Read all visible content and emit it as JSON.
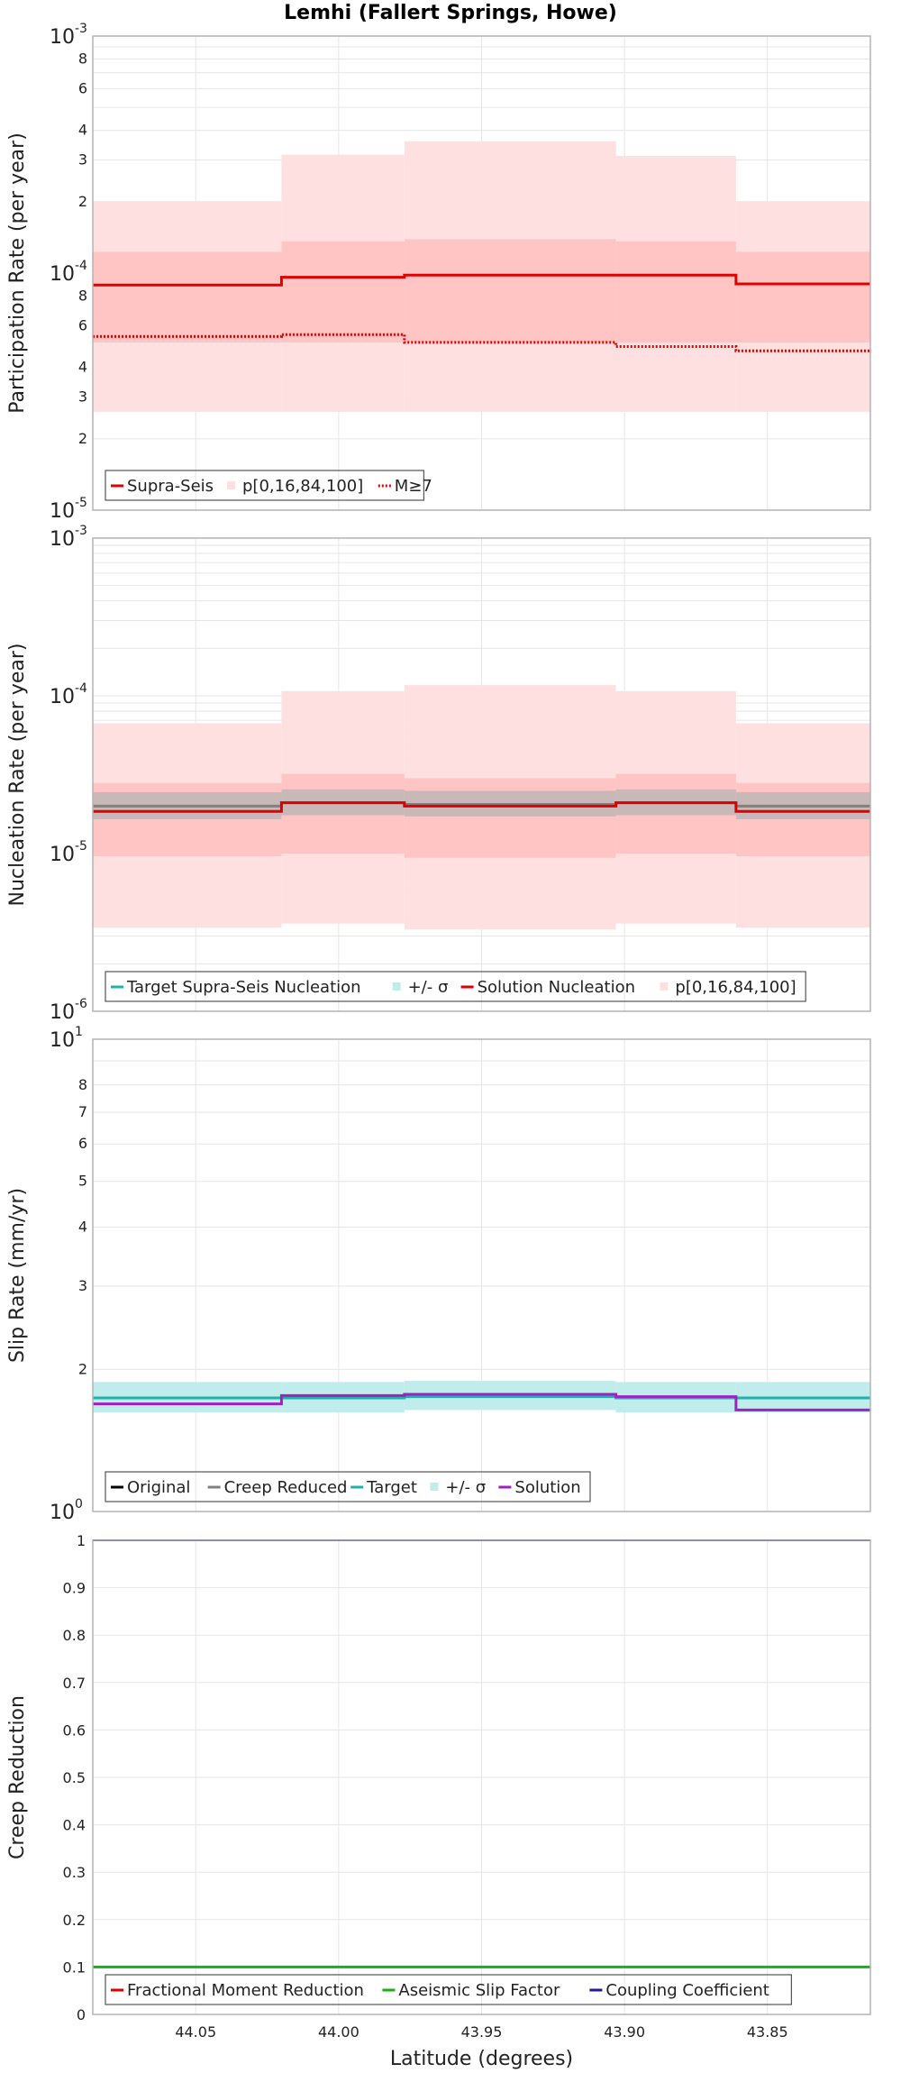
{
  "title": "Lemhi (Fallert Springs, Howe)",
  "colors": {
    "red": "#e00000",
    "pink_light": "#ffe0e0",
    "pink_mid": "#ffc4c4",
    "gray": "#808080",
    "gray_band": "#c9b8b8",
    "teal": "#20b2aa",
    "teal_band": "#c0ecec",
    "purple": "#a020c0",
    "green": "#18b018",
    "navy": "#1c1c9c",
    "black": "#000000",
    "grid": "#e6e6e6",
    "frame": "#b4b4b4"
  },
  "chart_data": [
    {
      "type": "line",
      "ylabel": "Participation Rate (per year)",
      "log": true,
      "ylim": [
        1e-05,
        0.001
      ],
      "bands": [
        {
          "name": "p[0,16,84,100]",
          "level": "outer",
          "values": [
            [
              2.6e-05,
              0.000201
            ],
            [
              2.6e-05,
              0.000316
            ],
            [
              2.6e-05,
              0.00036
            ],
            [
              2.6e-05,
              0.000312
            ],
            [
              2.6e-05,
              0.000201
            ]
          ]
        },
        {
          "name": "p[0,16,84,100]",
          "level": "inner",
          "values": [
            [
              5.1e-05,
              0.000123
            ],
            [
              5.1e-05,
              0.000136
            ],
            [
              5.1e-05,
              0.000139
            ],
            [
              5.1e-05,
              0.000136
            ],
            [
              5.1e-05,
              0.000123
            ]
          ]
        }
      ],
      "series": [
        {
          "name": "Supra-Seis",
          "style": "solid",
          "values": [
            8.9e-05,
            9.6e-05,
            9.8e-05,
            9.8e-05,
            9e-05
          ]
        },
        {
          "name": "M≥7",
          "style": "dotted",
          "values": [
            5.4e-05,
            5.5e-05,
            5.1e-05,
            4.9e-05,
            4.7e-05
          ]
        }
      ],
      "legend": [
        "Supra-Seis",
        "p[0,16,84,100]",
        "M≥7"
      ],
      "legend_position": "bottom-left"
    },
    {
      "type": "line",
      "ylabel": "Nucleation Rate (per year)",
      "log": true,
      "ylim": [
        1e-06,
        0.001
      ],
      "bands": [
        {
          "name": "p[0,16,84,100]",
          "level": "outer",
          "values": [
            [
              3.4e-06,
              6.7e-05
            ],
            [
              3.6e-06,
              0.000107
            ],
            [
              3.3e-06,
              0.000117
            ],
            [
              3.6e-06,
              0.000107
            ],
            [
              3.4e-06,
              6.7e-05
            ]
          ]
        },
        {
          "name": "p[0,16,84,100]",
          "level": "inner",
          "values": [
            [
              9.6e-06,
              2.8e-05
            ],
            [
              1e-05,
              3.2e-05
            ],
            [
              9.4e-06,
              3e-05
            ],
            [
              1e-05,
              3.2e-05
            ],
            [
              9.6e-06,
              2.8e-05
            ]
          ]
        },
        {
          "name": "+/- σ",
          "level": "sigma",
          "values": [
            [
              1.65e-05,
              2.45e-05
            ],
            [
              1.75e-05,
              2.55e-05
            ],
            [
              1.72e-05,
              2.5e-05
            ],
            [
              1.75e-05,
              2.55e-05
            ],
            [
              1.65e-05,
              2.45e-05
            ]
          ]
        }
      ],
      "series": [
        {
          "name": "Target Supra-Seis Nucleation",
          "style": "gray",
          "values": [
            2e-05,
            2.1e-05,
            2.05e-05,
            2.1e-05,
            2e-05
          ]
        },
        {
          "name": "Solution Nucleation",
          "style": "solid",
          "values": [
            1.85e-05,
            2.1e-05,
            2e-05,
            2.1e-05,
            1.85e-05
          ]
        }
      ],
      "legend": [
        "Target Supra-Seis Nucleation",
        "+/- σ",
        "Solution Nucleation",
        "p[0,16,84,100]"
      ],
      "legend_position": "bottom-left"
    },
    {
      "type": "line",
      "ylabel": "Slip Rate (mm/yr)",
      "log": true,
      "ylim": [
        1,
        10
      ],
      "bands": [
        {
          "name": "+/- σ",
          "level": "teal",
          "values": [
            [
              1.62,
              1.88
            ],
            [
              1.62,
              1.88
            ],
            [
              1.64,
              1.89
            ],
            [
              1.62,
              1.88
            ],
            [
              1.62,
              1.88
            ]
          ]
        }
      ],
      "series": [
        {
          "name": "Target",
          "style": "teal",
          "values": [
            1.74,
            1.74,
            1.75,
            1.74,
            1.74
          ]
        },
        {
          "name": "Solution",
          "style": "purple",
          "values": [
            1.69,
            1.76,
            1.77,
            1.75,
            1.64
          ]
        }
      ],
      "legend": [
        "Original",
        "Creep Reduced",
        "Target",
        "+/- σ",
        "Solution"
      ],
      "legend_position": "bottom-left"
    },
    {
      "type": "line",
      "ylabel": "Creep Reduction",
      "log": false,
      "ylim": [
        0,
        1
      ],
      "series": [
        {
          "name": "Aseismic Slip Factor",
          "style": "green",
          "values": [
            0.1,
            0.1,
            0.1,
            0.1,
            0.1
          ]
        },
        {
          "name": "Coupling Coefficient",
          "style": "navy",
          "values": [
            1,
            1,
            1,
            1,
            1
          ]
        }
      ],
      "legend": [
        "Fractional Moment Reduction",
        "Aseismic Slip Factor",
        "Coupling Coefficient"
      ],
      "legend_position": "bottom-left"
    }
  ],
  "x_axis": {
    "label": "Latitude (degrees)",
    "reversed": true,
    "xlim": [
      44.086,
      43.814
    ],
    "ticks": [
      "44.05",
      "44.00",
      "43.95",
      "43.90",
      "43.85"
    ],
    "tick_values": [
      44.05,
      44.0,
      43.95,
      43.9,
      43.85
    ],
    "segment_bounds": [
      44.086,
      44.02,
      43.977,
      43.903,
      43.861,
      43.814
    ]
  },
  "y_ticks": {
    "panel1": {
      "minor_labels": [
        "8",
        "6",
        "4",
        "3",
        "2",
        "8",
        "6",
        "4",
        "3",
        "2"
      ]
    },
    "panel3": {
      "minor_labels": [
        "8",
        "7",
        "6",
        "5",
        "4",
        "3",
        "2"
      ]
    },
    "panel4": [
      "0",
      "0.1",
      "0.2",
      "0.3",
      "0.4",
      "0.5",
      "0.6",
      "0.7",
      "0.8",
      "0.9",
      "1"
    ]
  }
}
